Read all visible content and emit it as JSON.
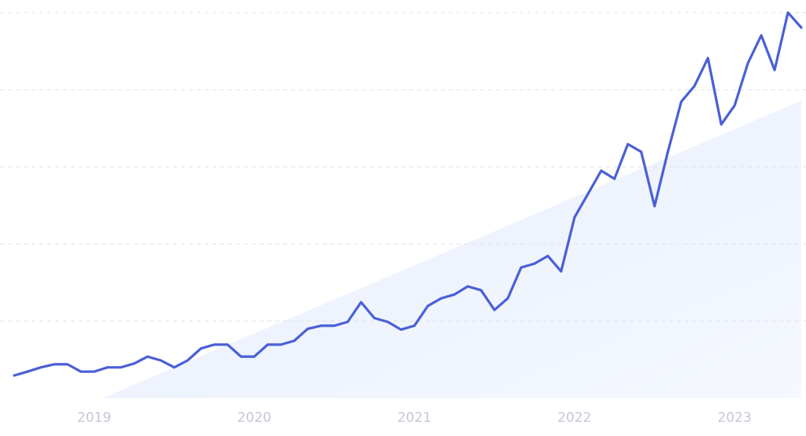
{
  "chart_data": {
    "type": "line",
    "categories": [
      null,
      null,
      null,
      null,
      null,
      null,
      "2019",
      null,
      null,
      null,
      null,
      null,
      null,
      null,
      null,
      null,
      null,
      null,
      "2020",
      null,
      null,
      null,
      null,
      null,
      null,
      null,
      null,
      null,
      null,
      null,
      "2021",
      null,
      null,
      null,
      null,
      null,
      null,
      null,
      null,
      null,
      null,
      null,
      "2022",
      null,
      null,
      null,
      null,
      null,
      null,
      null,
      null,
      null,
      null,
      null,
      "2023",
      null,
      null,
      null,
      null,
      null
    ],
    "values": [
      5.9,
      6.9,
      8.0,
      8.8,
      8.8,
      6.9,
      6.9,
      8.0,
      8.0,
      9.0,
      10.8,
      9.8,
      8.0,
      9.8,
      12.9,
      13.9,
      13.9,
      10.8,
      10.8,
      13.9,
      13.9,
      14.9,
      18.0,
      18.8,
      18.8,
      19.8,
      24.9,
      20.8,
      19.8,
      17.8,
      18.8,
      23.9,
      25.9,
      26.9,
      29.0,
      28.0,
      22.9,
      25.9,
      33.9,
      34.9,
      36.9,
      32.9,
      46.9,
      52.9,
      59.0,
      56.9,
      65.9,
      63.9,
      49.8,
      63.9,
      76.9,
      81.0,
      88.2,
      71.0,
      75.9,
      86.9,
      94.1,
      85.1,
      100,
      96.1
    ],
    "color": "#4a5fd6",
    "ylim": [
      0,
      100
    ],
    "yticks": [
      20,
      40,
      60,
      80,
      100
    ],
    "grid": true
  }
}
